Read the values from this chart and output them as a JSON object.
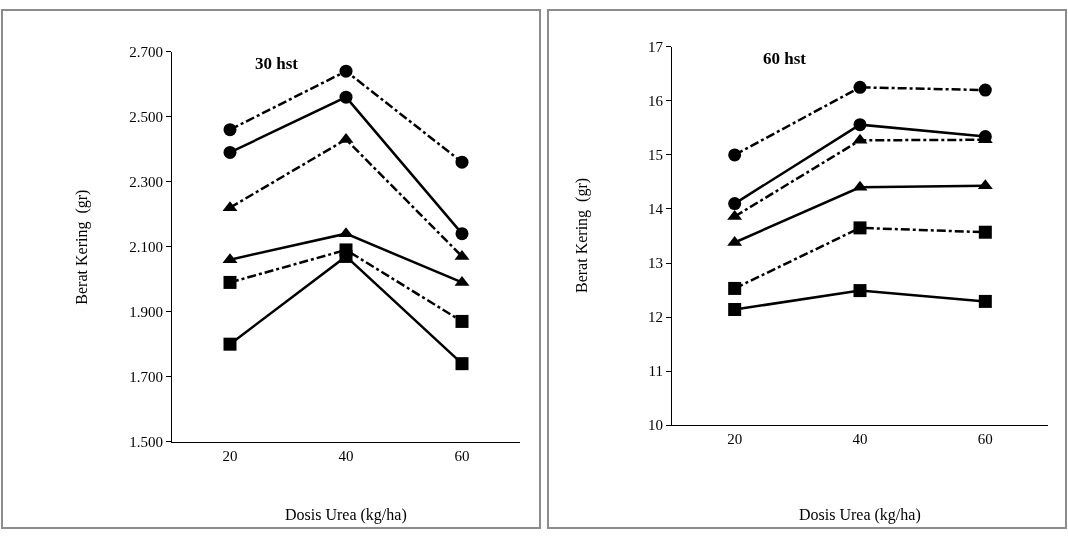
{
  "chart_data": [
    {
      "type": "line",
      "title": "30 hst",
      "xlabel": "Dosis Urea (kg/ha)",
      "ylabel": "Berat Kering  (gr)",
      "categories": [
        "20",
        "40",
        "60"
      ],
      "ylim": [
        1.5,
        2.7
      ],
      "yticks": [
        {
          "value": 1.5,
          "label": "1.500"
        },
        {
          "value": 1.7,
          "label": "1.700"
        },
        {
          "value": 1.9,
          "label": "1.900"
        },
        {
          "value": 2.1,
          "label": "2.100"
        },
        {
          "value": 2.3,
          "label": "2.300"
        },
        {
          "value": 2.5,
          "label": "2.500"
        },
        {
          "value": 2.7,
          "label": "2.700"
        }
      ],
      "grid": false,
      "series": [
        {
          "color": "#000000",
          "marker": "circle",
          "line_style": "dashdot",
          "values": [
            2.46,
            2.64,
            2.36
          ]
        },
        {
          "color": "#000000",
          "marker": "circle",
          "line_style": "solid",
          "values": [
            2.39,
            2.56,
            2.14
          ]
        },
        {
          "color": "#000000",
          "marker": "triangle",
          "line_style": "dashdot",
          "values": [
            2.22,
            2.43,
            2.07
          ]
        },
        {
          "color": "#000000",
          "marker": "triangle",
          "line_style": "solid",
          "values": [
            2.06,
            2.14,
            1.99
          ]
        },
        {
          "color": "#000000",
          "marker": "square",
          "line_style": "dashdot",
          "values": [
            1.99,
            2.09,
            1.87
          ]
        },
        {
          "color": "#000000",
          "marker": "square",
          "line_style": "solid",
          "values": [
            1.8,
            2.07,
            1.74
          ]
        }
      ]
    },
    {
      "type": "line",
      "title": "60 hst",
      "xlabel": "Dosis Urea (kg/ha)",
      "ylabel": "Berat Kering  (gr)",
      "categories": [
        "20",
        "40",
        "60"
      ],
      "ylim": [
        10,
        17
      ],
      "yticks": [
        10,
        11,
        12,
        13,
        14,
        15,
        16,
        17
      ],
      "grid": false,
      "series": [
        {
          "color": "#000000",
          "marker": "circle",
          "line_style": "dashdot",
          "values": [
            15.0,
            16.25,
            16.2
          ]
        },
        {
          "color": "#000000",
          "marker": "circle",
          "line_style": "solid",
          "values": [
            14.1,
            15.56,
            15.34
          ]
        },
        {
          "color": "#000000",
          "marker": "triangle",
          "line_style": "dashdot",
          "values": [
            13.86,
            15.27,
            15.28
          ]
        },
        {
          "color": "#000000",
          "marker": "triangle",
          "line_style": "solid",
          "values": [
            13.38,
            14.4,
            14.43
          ]
        },
        {
          "color": "#000000",
          "marker": "square",
          "line_style": "dashdot",
          "values": [
            12.53,
            13.65,
            13.57
          ]
        },
        {
          "color": "#000000",
          "marker": "square",
          "line_style": "solid",
          "values": [
            12.14,
            12.49,
            12.29
          ]
        }
      ]
    }
  ]
}
